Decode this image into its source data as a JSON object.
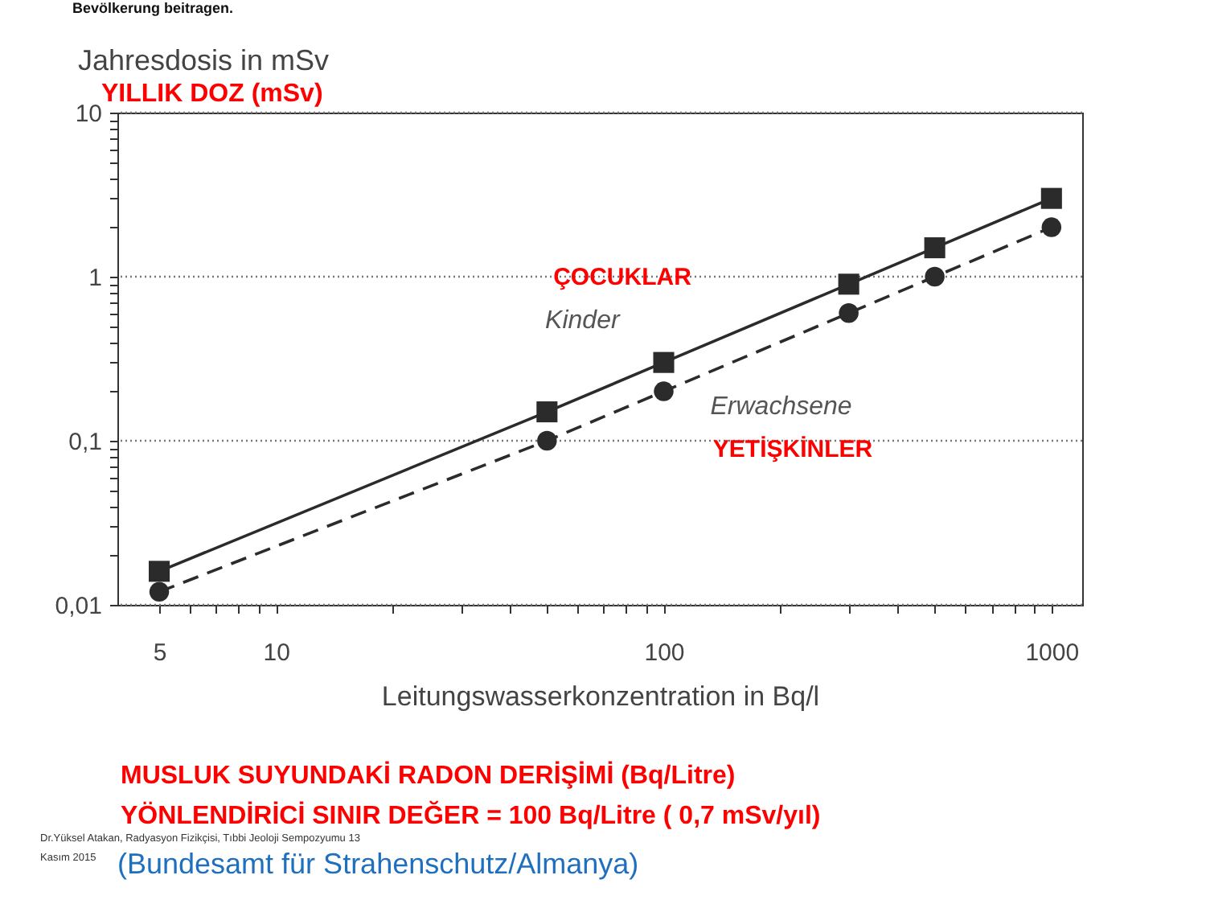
{
  "chart_data": {
    "type": "line",
    "ylabel": "Jahresdosis in mSv",
    "xlabel": "Leitungswasserkonzentration in Bq/l",
    "x": [
      5,
      50,
      100,
      300,
      500,
      1000
    ],
    "series": [
      {
        "name": "Kinder",
        "color": "#2b2b2b",
        "marker": "square",
        "line_style": "solid",
        "values": [
          0.016,
          0.15,
          0.3,
          0.9,
          1.5,
          3.0
        ]
      },
      {
        "name": "Erwachsene",
        "color": "#2b2b2b",
        "marker": "circle",
        "line_style": "dashed",
        "values": [
          0.012,
          0.1,
          0.2,
          0.6,
          1.0,
          2.0
        ]
      }
    ],
    "log": "xy",
    "xlim": [
      3.9,
      1200
    ],
    "ylim": [
      0.01,
      10
    ],
    "xticks": [
      5,
      {
        "value": 6,
        "label": null
      },
      {
        "value": 7,
        "label": null
      },
      {
        "value": 8,
        "label": null
      },
      {
        "value": 9,
        "label": null
      },
      10,
      {
        "value": 20,
        "label": null
      },
      {
        "value": 30,
        "label": null
      },
      {
        "value": 40,
        "label": null
      },
      {
        "value": 50,
        "label": null
      },
      {
        "value": 60,
        "label": null
      },
      {
        "value": 70,
        "label": null
      },
      {
        "value": 80,
        "label": null
      },
      {
        "value": 90,
        "label": null
      },
      100,
      {
        "value": 200,
        "label": null
      },
      {
        "value": 300,
        "label": null
      },
      {
        "value": 400,
        "label": null
      },
      {
        "value": 500,
        "label": null
      },
      {
        "value": 600,
        "label": null
      },
      {
        "value": 700,
        "label": null
      },
      {
        "value": 800,
        "label": null
      },
      {
        "value": 900,
        "label": null
      },
      1000
    ],
    "yticks": [
      {
        "value": 0.01,
        "label": "0,01"
      },
      {
        "value": 0.02,
        "label": null
      },
      {
        "value": 0.03,
        "label": null
      },
      {
        "value": 0.04,
        "label": null
      },
      {
        "value": 0.05,
        "label": null
      },
      {
        "value": 0.06,
        "label": null
      },
      {
        "value": 0.07,
        "label": null
      },
      {
        "value": 0.08,
        "label": null
      },
      {
        "value": 0.09,
        "label": null
      },
      {
        "value": 0.1,
        "label": "0,1"
      },
      {
        "value": 0.2,
        "label": null
      },
      {
        "value": 0.3,
        "label": null
      },
      {
        "value": 0.4,
        "label": null
      },
      {
        "value": 0.5,
        "label": null
      },
      {
        "value": 0.6,
        "label": null
      },
      {
        "value": 0.7,
        "label": null
      },
      {
        "value": 0.8,
        "label": null
      },
      {
        "value": 0.9,
        "label": null
      },
      1,
      {
        "value": 2,
        "label": null
      },
      {
        "value": 3,
        "label": null
      },
      {
        "value": 4,
        "label": null
      },
      {
        "value": 5,
        "label": null
      },
      {
        "value": 6,
        "label": null
      },
      {
        "value": 7,
        "label": null
      },
      {
        "value": 8,
        "label": null
      },
      {
        "value": 9,
        "label": null
      },
      10
    ],
    "grid": "y",
    "annotations": [
      "Bevölkerung beitragen.",
      "YILLIK DOZ (mSv)",
      "ÇOCUKLAR",
      "YETİŞKİNLER",
      "MUSLUK SUYUNDAKİ RADON DERİŞİMİ  (Bq/Litre)",
      "YÖNLENDİRİCİ SINIR DEĞER = 100 Bq/Litre ( 0,7 mSv/yıl)",
      "Dr.Yüksel Atakan, Radyasyon Fizikçisi, Tıbbi Jeoloji Sempozyumu 13",
      "Kasım 2015",
      "(Bundesamt für Strahenschutz/Almanya)"
    ]
  }
}
